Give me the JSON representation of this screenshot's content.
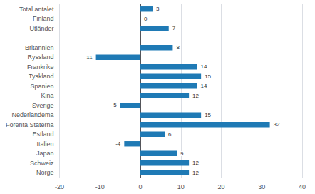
{
  "chart_data": {
    "type": "bar",
    "orientation": "horizontal",
    "categories": [
      "Total antalet",
      "Finland",
      "Utländer",
      null,
      "Britannien",
      "Ryssland",
      "Frankrike",
      "Tyskland",
      "Spanien",
      "Kina",
      "Sverige",
      "Nederländema",
      "Förenta Staterna",
      "Estland",
      "Italien",
      "Japan",
      "Schweiz",
      "Norge"
    ],
    "values": [
      3,
      0,
      7,
      null,
      8,
      -11,
      14,
      15,
      14,
      12,
      -5,
      15,
      32,
      6,
      -4,
      9,
      12,
      12
    ],
    "color": "#1f7ab5",
    "xlim": [
      -20,
      40
    ],
    "xticks": [
      -20,
      -10,
      0,
      10,
      20,
      30,
      40
    ],
    "grid": true,
    "data_labels": true
  }
}
